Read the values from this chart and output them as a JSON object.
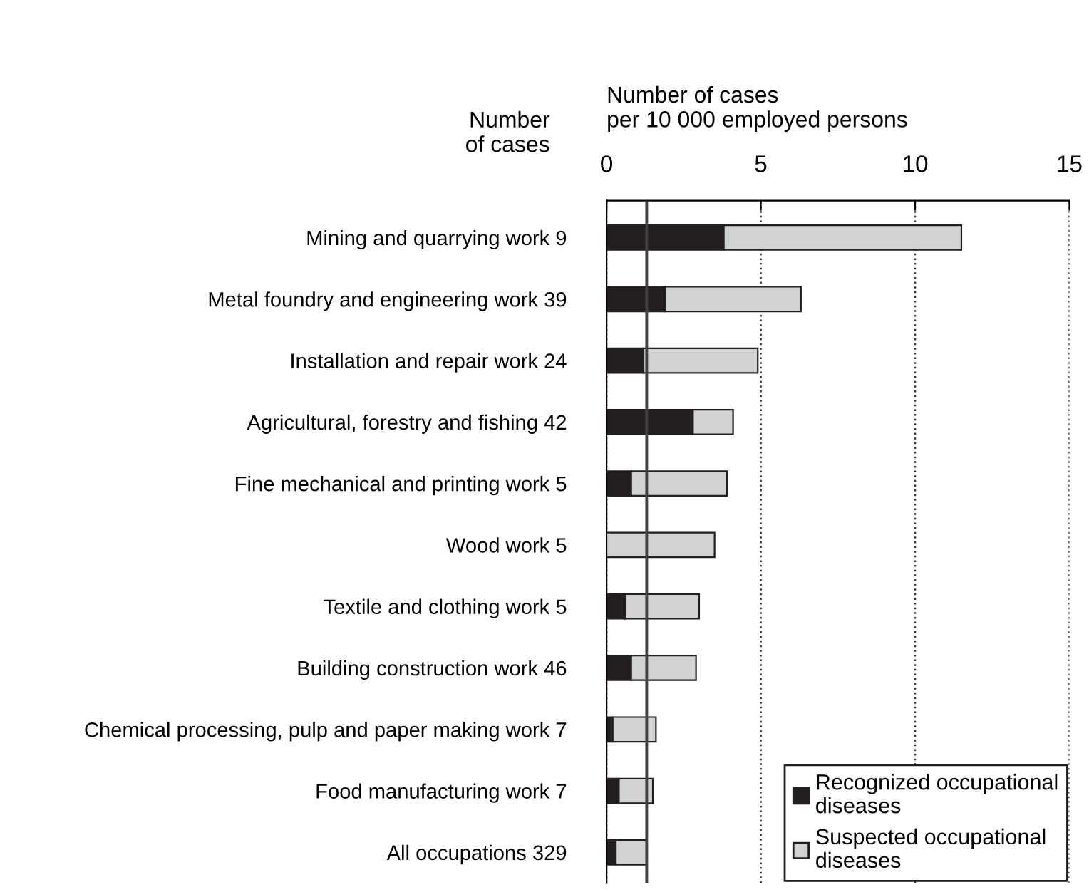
{
  "chart_data": {
    "type": "bar",
    "orientation": "horizontal",
    "stacked": true,
    "xlabel": "Number of cases\nper 10 000 employed persons",
    "annotations": [
      "Number\nof cases"
    ],
    "categories": [
      "Mining and quarrying work 9",
      "Metal foundry and engineering work 39",
      "Installation and repair work 24",
      "Agricultural, forestry and fishing 42",
      "Fine mechanical and printing work 5",
      "Wood work 5",
      "Textile and clothing work 5",
      "Building construction work 46",
      "Chemical processing, pulp and paper making work 7",
      "Food manufacturing work 7",
      "All occupations 329"
    ],
    "series": [
      {
        "name": "Recognized occupational\ndiseases",
        "color": "#231f20",
        "values": [
          3.8,
          1.9,
          1.2,
          2.8,
          0.8,
          0,
          0.6,
          0.8,
          0.2,
          0.4,
          0.3
        ]
      },
      {
        "name": "Suspected occupational\ndiseases",
        "color": "#d1d2d4",
        "values": [
          7.7,
          4.4,
          3.7,
          1.3,
          3.1,
          3.5,
          2.4,
          2.1,
          1.4,
          1.1,
          1.0
        ]
      }
    ],
    "xlim": [
      0,
      15
    ],
    "xticks": [
      0,
      5,
      10,
      15
    ],
    "grid": "x",
    "legend": "bottom right",
    "ref_lines": [
      {
        "axis": "x",
        "value": 1.3,
        "color": "#404040",
        "line_style": "solid"
      }
    ]
  }
}
